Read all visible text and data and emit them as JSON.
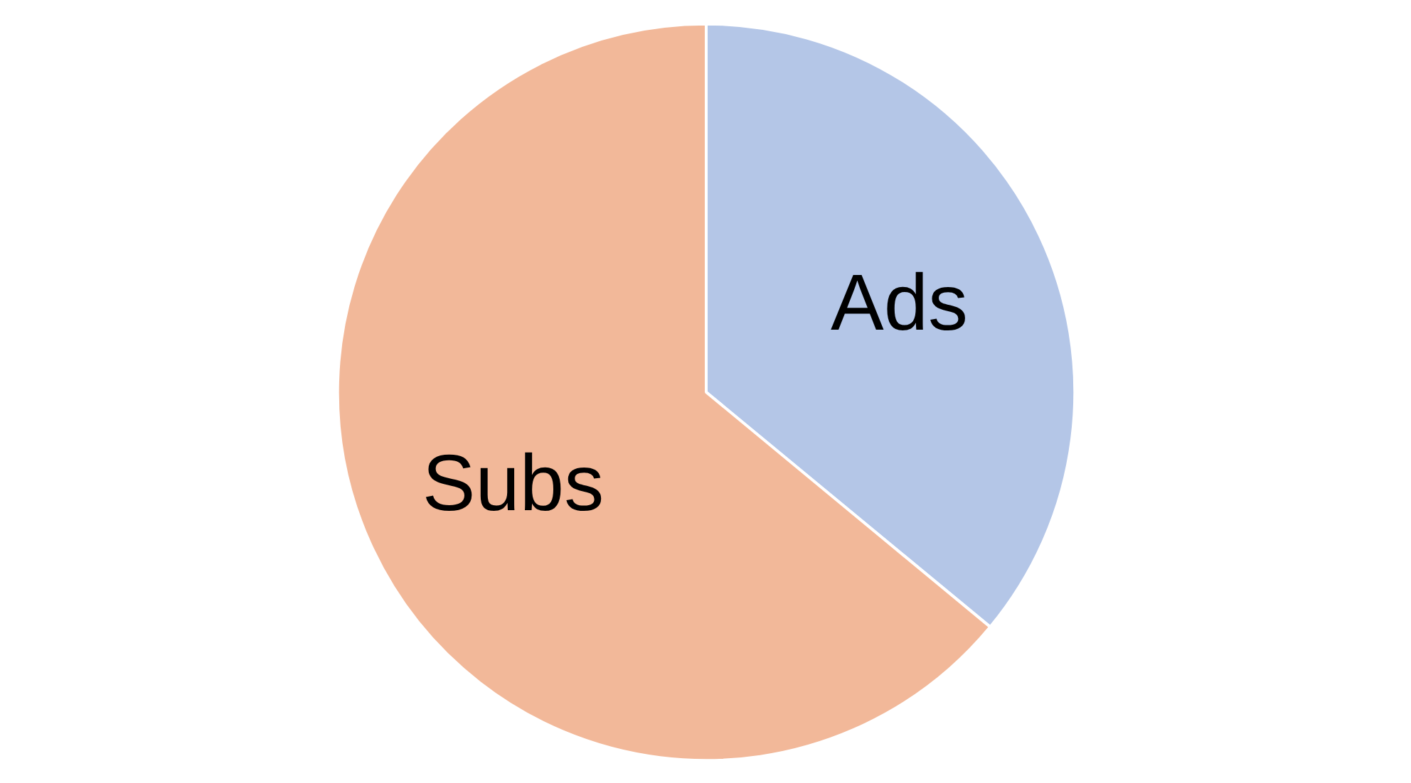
{
  "chart_data": {
    "type": "pie",
    "categories": [
      "Ads",
      "Subs"
    ],
    "values": [
      36,
      64
    ],
    "colors": [
      "#b4c6e7",
      "#f2b899"
    ]
  }
}
